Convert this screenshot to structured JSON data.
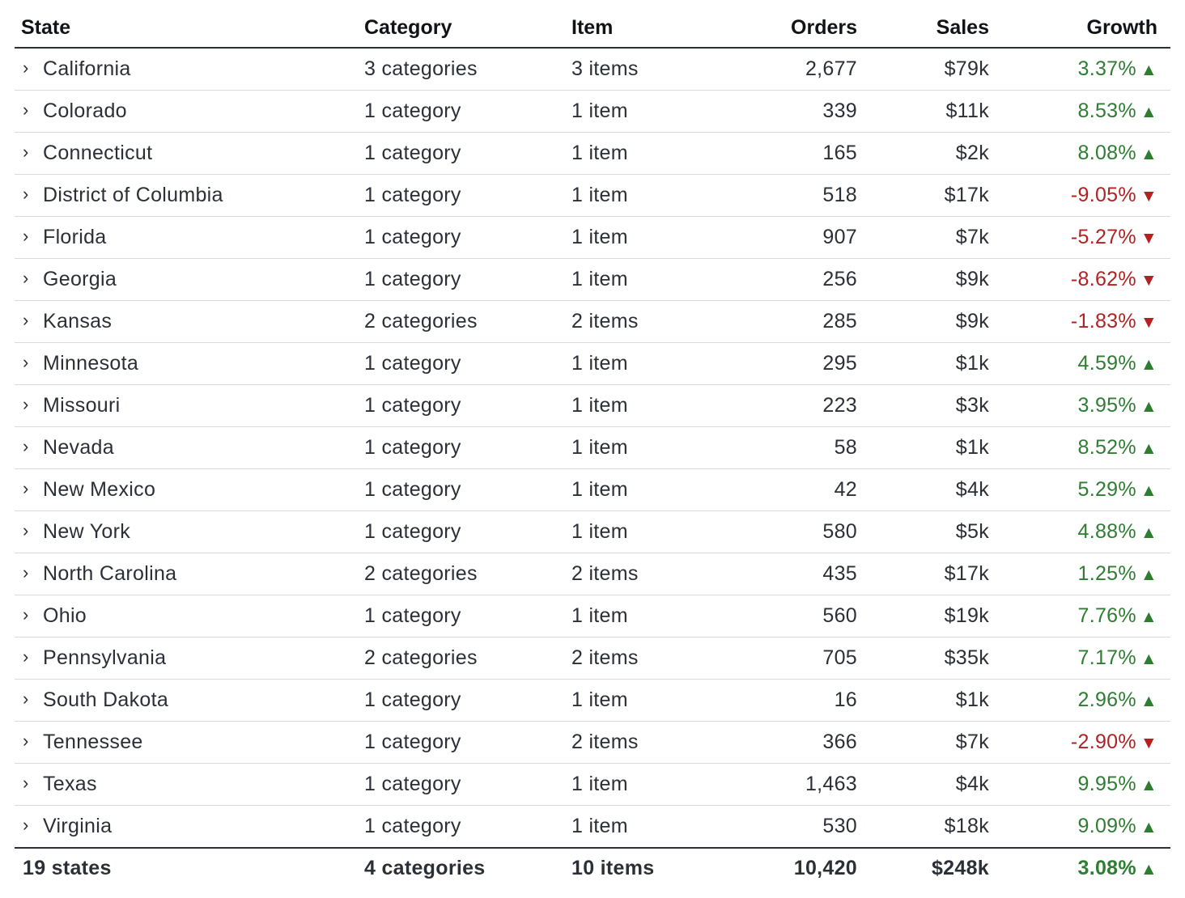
{
  "table": {
    "headers": {
      "state": "State",
      "category": "Category",
      "item": "Item",
      "orders": "Orders",
      "sales": "Sales",
      "growth": "Growth"
    },
    "rows": [
      {
        "state": "California",
        "category": "3 categories",
        "item": "3 items",
        "orders": "2,677",
        "sales": "$79k",
        "growth": "3.37%",
        "trend": "up"
      },
      {
        "state": "Colorado",
        "category": "1 category",
        "item": "1 item",
        "orders": "339",
        "sales": "$11k",
        "growth": "8.53%",
        "trend": "up"
      },
      {
        "state": "Connecticut",
        "category": "1 category",
        "item": "1 item",
        "orders": "165",
        "sales": "$2k",
        "growth": "8.08%",
        "trend": "up"
      },
      {
        "state": "District of Columbia",
        "category": "1 category",
        "item": "1 item",
        "orders": "518",
        "sales": "$17k",
        "growth": "-9.05%",
        "trend": "down"
      },
      {
        "state": "Florida",
        "category": "1 category",
        "item": "1 item",
        "orders": "907",
        "sales": "$7k",
        "growth": "-5.27%",
        "trend": "down"
      },
      {
        "state": "Georgia",
        "category": "1 category",
        "item": "1 item",
        "orders": "256",
        "sales": "$9k",
        "growth": "-8.62%",
        "trend": "down"
      },
      {
        "state": "Kansas",
        "category": "2 categories",
        "item": "2 items",
        "orders": "285",
        "sales": "$9k",
        "growth": "-1.83%",
        "trend": "down"
      },
      {
        "state": "Minnesota",
        "category": "1 category",
        "item": "1 item",
        "orders": "295",
        "sales": "$1k",
        "growth": "4.59%",
        "trend": "up"
      },
      {
        "state": "Missouri",
        "category": "1 category",
        "item": "1 item",
        "orders": "223",
        "sales": "$3k",
        "growth": "3.95%",
        "trend": "up"
      },
      {
        "state": "Nevada",
        "category": "1 category",
        "item": "1 item",
        "orders": "58",
        "sales": "$1k",
        "growth": "8.52%",
        "trend": "up"
      },
      {
        "state": "New Mexico",
        "category": "1 category",
        "item": "1 item",
        "orders": "42",
        "sales": "$4k",
        "growth": "5.29%",
        "trend": "up"
      },
      {
        "state": "New York",
        "category": "1 category",
        "item": "1 item",
        "orders": "580",
        "sales": "$5k",
        "growth": "4.88%",
        "trend": "up"
      },
      {
        "state": "North Carolina",
        "category": "2 categories",
        "item": "2 items",
        "orders": "435",
        "sales": "$17k",
        "growth": "1.25%",
        "trend": "up"
      },
      {
        "state": "Ohio",
        "category": "1 category",
        "item": "1 item",
        "orders": "560",
        "sales": "$19k",
        "growth": "7.76%",
        "trend": "up"
      },
      {
        "state": "Pennsylvania",
        "category": "2 categories",
        "item": "2 items",
        "orders": "705",
        "sales": "$35k",
        "growth": "7.17%",
        "trend": "up"
      },
      {
        "state": "South Dakota",
        "category": "1 category",
        "item": "1 item",
        "orders": "16",
        "sales": "$1k",
        "growth": "2.96%",
        "trend": "up"
      },
      {
        "state": "Tennessee",
        "category": "1 category",
        "item": "2 items",
        "orders": "366",
        "sales": "$7k",
        "growth": "-2.90%",
        "trend": "down"
      },
      {
        "state": "Texas",
        "category": "1 category",
        "item": "1 item",
        "orders": "1,463",
        "sales": "$4k",
        "growth": "9.95%",
        "trend": "up"
      },
      {
        "state": "Virginia",
        "category": "1 category",
        "item": "1 item",
        "orders": "530",
        "sales": "$18k",
        "growth": "9.09%",
        "trend": "up"
      }
    ],
    "footer": {
      "state": "19 states",
      "category": "4 categories",
      "item": "10 items",
      "orders": "10,420",
      "sales": "$248k",
      "growth": "3.08%",
      "trend": "up"
    }
  },
  "icons": {
    "expand": "chevron-right-icon",
    "up": "triangle-up-icon",
    "down": "triangle-down-icon"
  },
  "colors": {
    "positive": "#2e7d32",
    "negative": "#b22222",
    "text": "#2b2f36",
    "rule": "#d9dadd"
  }
}
